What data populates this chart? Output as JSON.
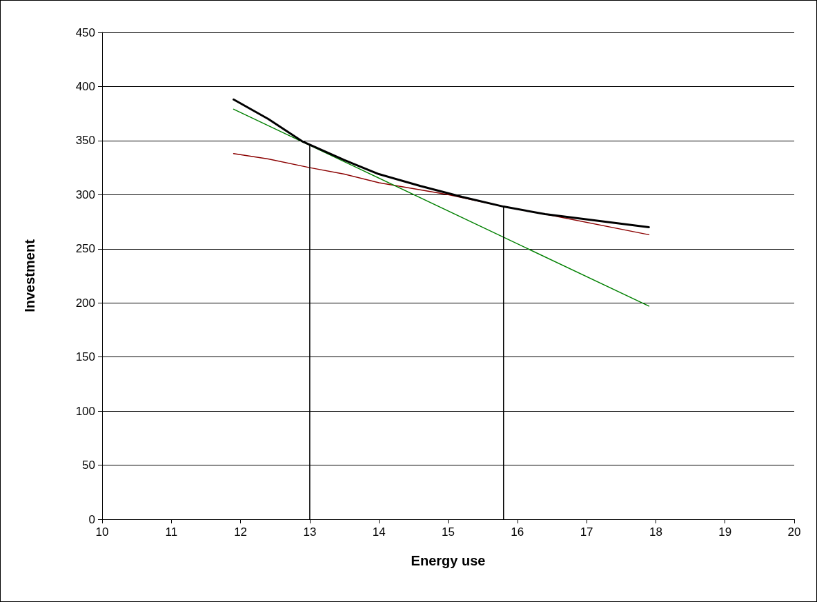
{
  "chart_data": {
    "type": "line",
    "xlabel": "Energy use",
    "ylabel": "Investment",
    "xlim": [
      10,
      20
    ],
    "xticks": [
      10,
      11,
      12,
      13,
      14,
      15,
      16,
      17,
      18,
      19,
      20
    ],
    "ylim": [
      0,
      450
    ],
    "yticks": [
      0,
      50,
      100,
      150,
      200,
      250,
      300,
      350,
      400,
      450
    ],
    "grid": "y",
    "marker": "none",
    "series": [
      {
        "color": "#8b0000",
        "x": [
          11.9,
          12.4,
          13,
          13.5,
          14,
          15,
          15.8,
          16.4,
          17.9
        ],
        "values": [
          338,
          333,
          325,
          319,
          311,
          300,
          289,
          282,
          263
        ]
      },
      {
        "color": "#008000",
        "x": [
          11.9,
          17.9
        ],
        "values": [
          379,
          197
        ]
      },
      {
        "color": "#000000",
        "x": [
          11.9,
          12.4,
          12.9,
          13.5,
          14,
          14.6,
          15.2,
          15.8,
          16.4,
          17.9
        ],
        "values": [
          388,
          370,
          349,
          332,
          319,
          308,
          298,
          289,
          282,
          270
        ]
      },
      {
        "color": "#000000",
        "x": [
          13,
          13
        ],
        "values": [
          0,
          346
        ]
      },
      {
        "color": "#000000",
        "x": [
          15.8,
          15.8
        ],
        "values": [
          0,
          289
        ]
      }
    ]
  }
}
